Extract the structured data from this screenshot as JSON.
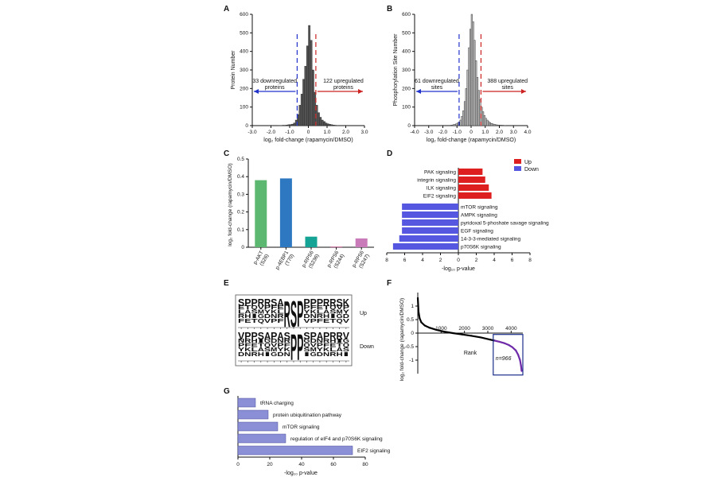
{
  "panels": {
    "a": "A",
    "b": "B",
    "c": "C",
    "d": "D",
    "e": "E",
    "f": "F",
    "g": "G"
  },
  "chart_data": [
    {
      "panel": "A",
      "type": "bar",
      "subtype": "histogram",
      "xlabel": "log₂ fold-change (rapamycin/DMSO)",
      "ylabel": "Protein Number",
      "xlim": [
        -3.0,
        3.0
      ],
      "ylim": [
        0,
        600
      ],
      "xticks": [
        "-3.0",
        "-2.0",
        "-1.0",
        "0",
        "1.0",
        "2.0",
        "3.0"
      ],
      "yticks": [
        "0",
        "100",
        "200",
        "300",
        "400",
        "500",
        "600"
      ],
      "bin_width": 0.1,
      "bins_start": [
        -1.6,
        -1.5,
        -1.4,
        -1.3,
        -1.2,
        -1.1,
        -1.0,
        -0.9,
        -0.8,
        -0.7,
        -0.6,
        -0.5,
        -0.4,
        -0.3,
        -0.2,
        -0.1,
        0.0,
        0.1,
        0.2,
        0.3,
        0.4,
        0.5,
        0.6,
        0.7,
        0.8,
        0.9,
        1.0,
        1.1,
        1.2,
        1.3,
        1.4,
        1.5
      ],
      "counts": [
        1,
        1,
        2,
        2,
        3,
        5,
        6,
        8,
        14,
        30,
        60,
        110,
        170,
        250,
        320,
        430,
        540,
        460,
        300,
        180,
        110,
        70,
        45,
        30,
        22,
        14,
        10,
        7,
        5,
        3,
        2,
        1
      ],
      "thresholds": [
        {
          "x": -0.6,
          "color": "#2233cc"
        },
        {
          "x": 0.4,
          "color": "#cc2222"
        }
      ],
      "annotations": [
        {
          "text": [
            "33 downregulated",
            "proteins"
          ],
          "color": "#2233cc"
        },
        {
          "text": [
            "122 upregulated",
            "proteins"
          ],
          "color": "#cc2222"
        }
      ]
    },
    {
      "panel": "B",
      "type": "bar",
      "subtype": "histogram",
      "xlabel": "log₂ fold-change (rapamycin/DMSO)",
      "ylabel": "Phosphorylation Site Number",
      "xlim": [
        -4.0,
        4.0
      ],
      "ylim": [
        0,
        600
      ],
      "xticks": [
        "-4.0",
        "-3.0",
        "-2.0",
        "-1.0",
        "0",
        "1.0",
        "2.0",
        "3.0",
        "4.0"
      ],
      "yticks": [
        "0",
        "100",
        "200",
        "300",
        "400",
        "500",
        "600"
      ],
      "bin_width": 0.1,
      "bins_start": [
        -1.5,
        -1.4,
        -1.3,
        -1.2,
        -1.1,
        -1.0,
        -0.9,
        -0.8,
        -0.7,
        -0.6,
        -0.5,
        -0.4,
        -0.3,
        -0.2,
        -0.1,
        0.0,
        0.1,
        0.2,
        0.3,
        0.4,
        0.5,
        0.6,
        0.7,
        0.8,
        0.9,
        1.0,
        1.1,
        1.2,
        1.3,
        1.4,
        1.5,
        1.6,
        1.7,
        1.8,
        1.9,
        2.0,
        2.1,
        2.2,
        2.3,
        2.4
      ],
      "counts": [
        2,
        3,
        5,
        7,
        10,
        14,
        20,
        30,
        50,
        80,
        130,
        200,
        300,
        420,
        520,
        600,
        560,
        460,
        350,
        260,
        190,
        140,
        100,
        75,
        55,
        40,
        30,
        22,
        16,
        12,
        9,
        7,
        5,
        4,
        3,
        3,
        2,
        2,
        1,
        1
      ],
      "thresholds": [
        {
          "x": -0.85,
          "color": "#2233cc"
        },
        {
          "x": 0.7,
          "color": "#cc2222"
        }
      ],
      "annotations": [
        {
          "text": [
            "61 downregulated",
            "sites"
          ],
          "color": "#2233cc"
        },
        {
          "text": [
            "388 upregulated",
            "sites"
          ],
          "color": "#cc2222"
        }
      ]
    },
    {
      "panel": "C",
      "type": "bar",
      "ylabel": "log₂ fold-change (rapamycin/DMSO)",
      "ylim": [
        0,
        0.5
      ],
      "yticks": [
        "0",
        "0.1",
        "0.2",
        "0.3",
        "0.4",
        "0.5"
      ],
      "categories": [
        [
          "p-AKT",
          "(S26)"
        ],
        [
          "p-4EBP1",
          "(T70)"
        ],
        [
          "p-RPS6",
          "(S236)"
        ],
        [
          "p-RPS6",
          "(S244)"
        ],
        [
          "p-RPS6",
          "(S247)"
        ]
      ],
      "values": [
        0.38,
        0.39,
        0.06,
        0.003,
        0.05
      ],
      "colors": [
        "#5cb870",
        "#2e78c2",
        "#14a394",
        "#b53a78",
        "#c97bb9"
      ]
    },
    {
      "panel": "D",
      "type": "bar",
      "orientation": "horizontal",
      "xlabel": "-log₁₀ p-value",
      "xticks": [
        "8",
        "6",
        "4",
        "2",
        "0",
        "2",
        "4",
        "6",
        "8"
      ],
      "xlim": [
        -8,
        8
      ],
      "legend": {
        "position": "top-right",
        "entries": [
          {
            "name": "Up",
            "color": "#dd1f1f"
          },
          {
            "name": "Down",
            "color": "#5557e0"
          }
        ]
      },
      "series": [
        {
          "name": "Up",
          "categories": [
            "PAK signaling",
            "integrin signaling",
            "ILK signaling",
            "EIF2 signaling"
          ],
          "values": [
            2.7,
            3.0,
            3.4,
            3.7
          ]
        },
        {
          "name": "Down",
          "categories": [
            "mTOR signaling",
            "AMPK signaling",
            "pyridoxal 5-phoshate savage signaling",
            "EGF signaling",
            "14-3-3-mediated signaling",
            "p70S6K signaling"
          ],
          "values": [
            6.3,
            6.3,
            6.3,
            6.3,
            6.6,
            7.3
          ]
        }
      ]
    },
    {
      "panel": "E",
      "type": "logo",
      "rows": [
        {
          "label": "Up",
          "central": [
            "R",
            "S",
            "P"
          ],
          "top_letters": [
            "S",
            "P",
            "P",
            "R",
            "R",
            "S",
            "A",
            "R",
            "S",
            "P",
            "P",
            "P",
            "P",
            "R",
            "R",
            "S",
            "K"
          ],
          "positions": [
            "-7",
            "-6",
            "-5",
            "-4",
            "-3",
            "-2",
            "-1",
            "0",
            "1",
            "2",
            "3",
            "4",
            "5",
            "6",
            "7",
            "8",
            "9"
          ]
        },
        {
          "label": "Down",
          "central": [
            "S",
            "P"
          ],
          "top_letters": [
            "V",
            "P",
            "P",
            "S",
            "A",
            "P",
            "A",
            "S",
            "P",
            "P",
            "S",
            "P",
            "A",
            "P",
            "R",
            "R",
            "V"
          ],
          "positions": [
            "-7",
            "-6",
            "-5",
            "-4",
            "-3",
            "-2",
            "-1",
            "0",
            "1",
            "2",
            "3",
            "4",
            "5",
            "6",
            "7",
            "8",
            "9"
          ]
        }
      ]
    },
    {
      "panel": "F",
      "type": "scatter",
      "xlabel": "Rank",
      "ylabel": "log₂ fold-change (rapamycin/DMSO)",
      "xlim": [
        0,
        4500
      ],
      "ylim": [
        -1.5,
        1.5
      ],
      "xticks": [
        "1000",
        "2000",
        "3000",
        "4000"
      ],
      "yticks": [
        "-1",
        "-0.5",
        "0",
        "0.5",
        "1"
      ],
      "x": [
        1,
        30,
        80,
        150,
        300,
        500,
        800,
        1100,
        1500,
        1900,
        2300,
        2700,
        3100,
        3300,
        3500,
        3700,
        3900,
        4050,
        4200,
        4300,
        4380,
        4420,
        4450
      ],
      "y": [
        1.3,
        0.8,
        0.55,
        0.4,
        0.28,
        0.2,
        0.12,
        0.06,
        0.0,
        -0.05,
        -0.1,
        -0.16,
        -0.24,
        -0.28,
        -0.32,
        -0.37,
        -0.44,
        -0.52,
        -0.64,
        -0.8,
        -1.0,
        -1.2,
        -1.4
      ],
      "highlight": {
        "x_from": 3300,
        "label": "n=966",
        "color": "#6f2aa8"
      }
    },
    {
      "panel": "G",
      "type": "bar",
      "orientation": "horizontal",
      "xlabel": "-log₁₀ p-value",
      "xlim": [
        0,
        80
      ],
      "xticks": [
        "0",
        "20",
        "40",
        "60",
        "80"
      ],
      "categories": [
        "tRNA charging",
        "protein  ubiquitination pathway",
        "mTOR signaling",
        "regulation of eIF4 and p70S6K signaling",
        "EIF2 signaling"
      ],
      "values": [
        11,
        19,
        25,
        30,
        72
      ],
      "color": "#8b8fd6"
    }
  ]
}
